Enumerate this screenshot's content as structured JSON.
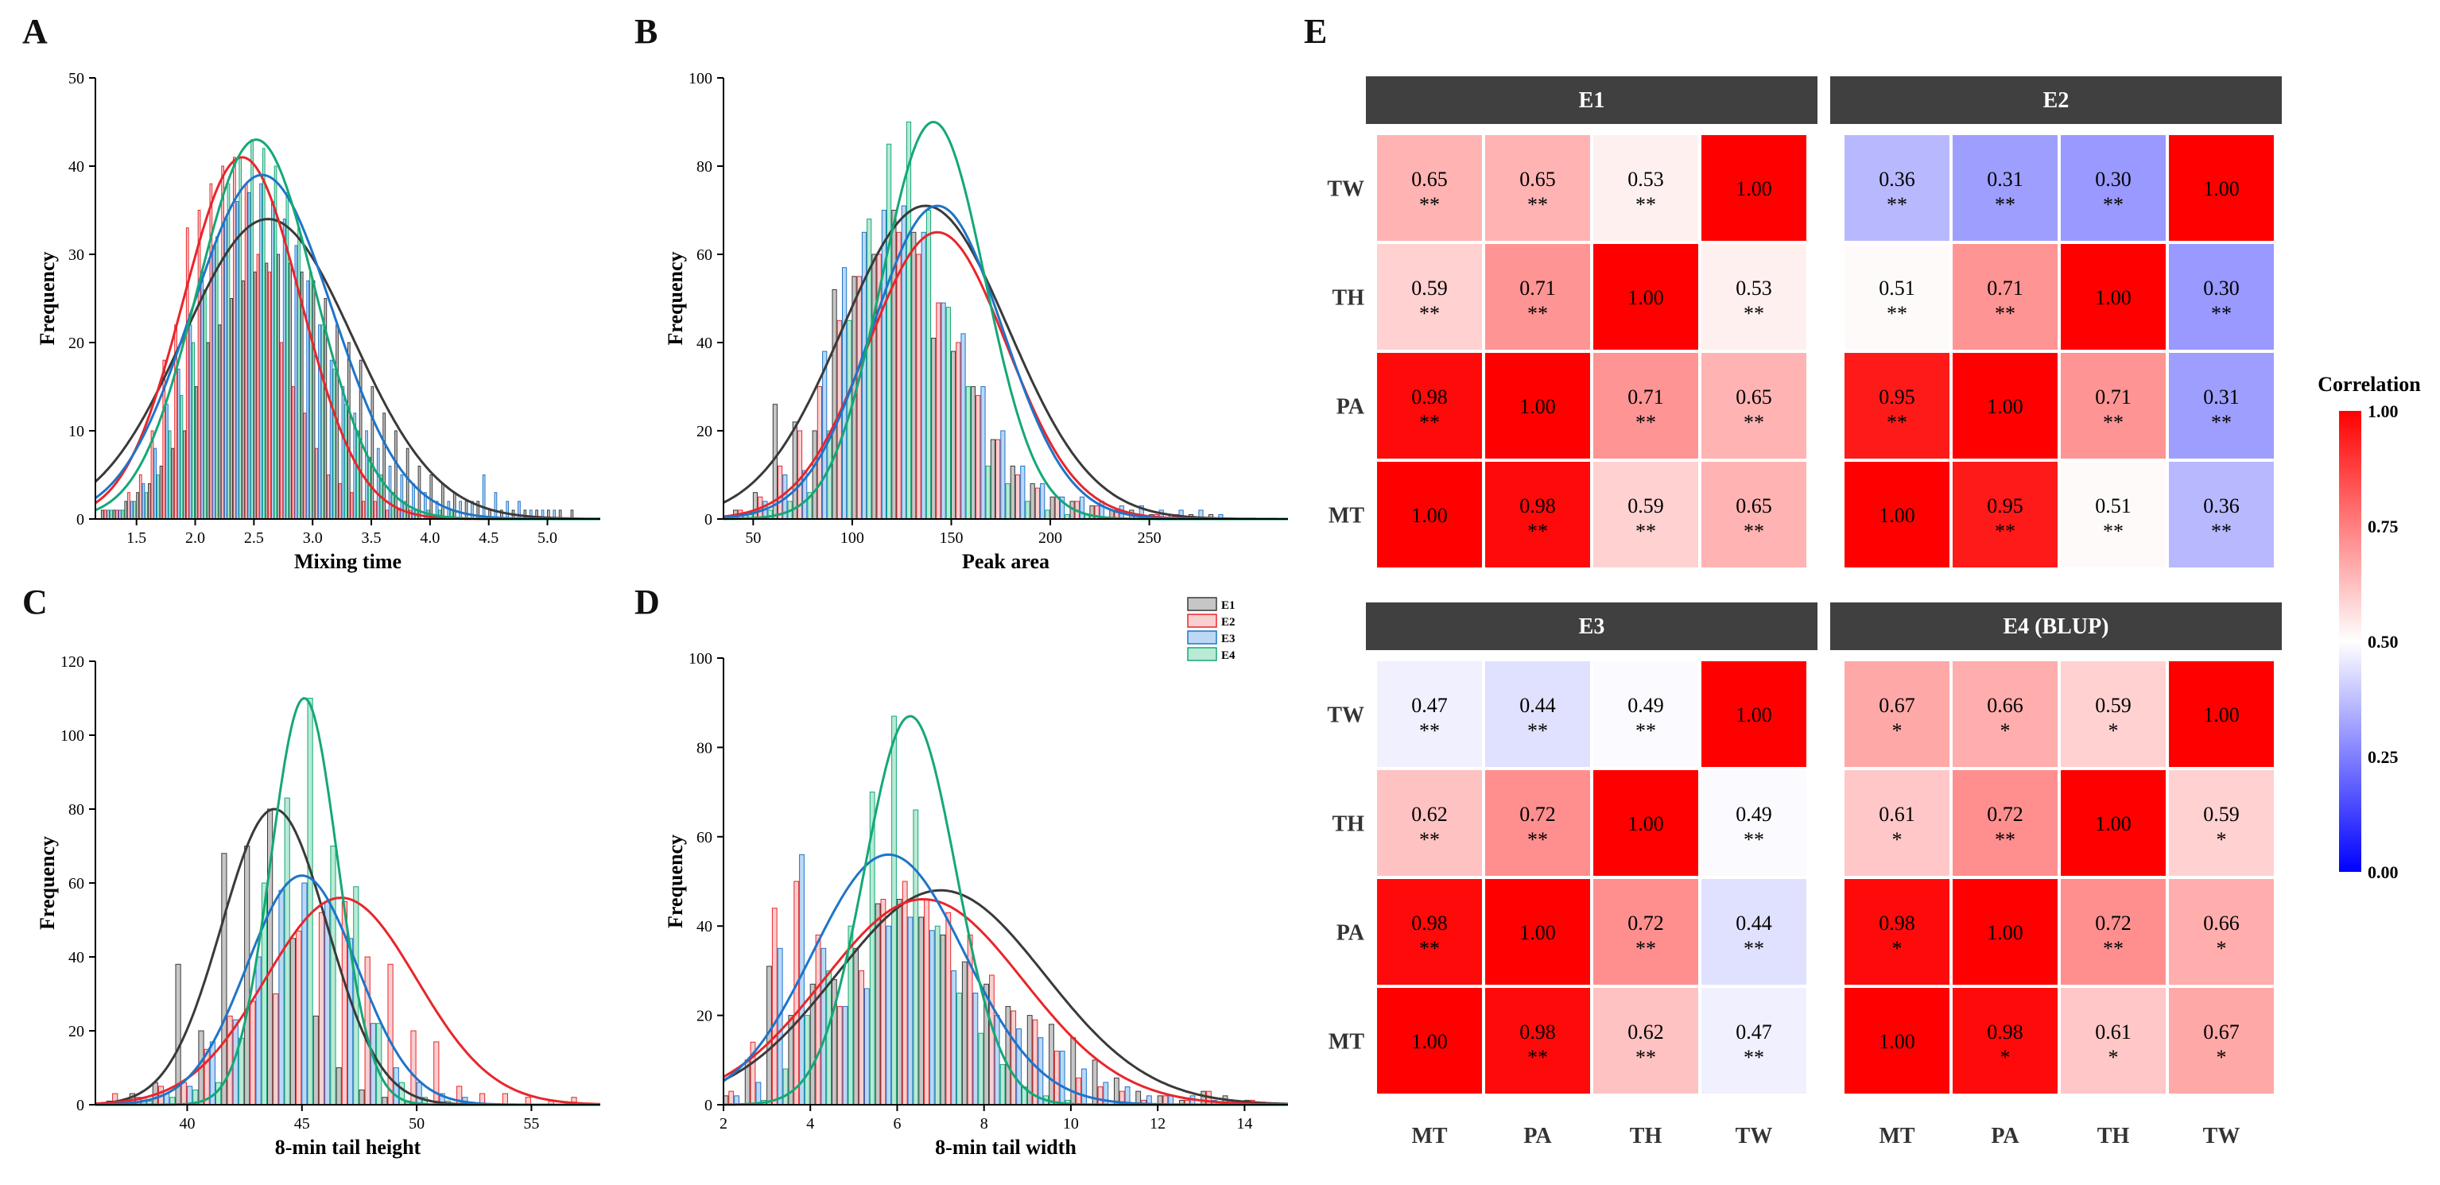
{
  "panel_letters": {
    "a": "A",
    "b": "B",
    "c": "C",
    "d": "D",
    "e": "E"
  },
  "hist_colors": {
    "E1": "#3a3a3a",
    "E2": "#e8262b",
    "E3": "#1f74c9",
    "E4": "#15a876"
  },
  "hist_fills": {
    "E1": "#c6c6c6",
    "E2": "#f9cfcf",
    "E3": "#bcd8f5",
    "E4": "#b9ead5"
  },
  "legend": {
    "entries": [
      "E1",
      "E2",
      "E3",
      "E4"
    ],
    "placement": "above panel D, right"
  },
  "heatmap_colorbar": {
    "title": "Correlation",
    "ticks": [
      "1.00",
      "0.75",
      "0.50",
      "0.25",
      "0.00"
    ]
  },
  "chart_data": [
    {
      "type": "bar",
      "panel": "A",
      "xlabel": "Mixing time",
      "ylabel": "Frequency",
      "xlim": [
        1.15,
        5.45
      ],
      "ylim": [
        0,
        50
      ],
      "xticks": [
        1.5,
        2.0,
        2.5,
        3.0,
        3.5,
        4.0,
        4.5,
        5.0
      ],
      "xtick_labels": [
        "1.5",
        "2.0",
        "2.5",
        "3.0",
        "3.5",
        "4.0",
        "4.5",
        "5.0"
      ],
      "yticks": [
        0,
        10,
        20,
        30,
        40,
        50
      ],
      "bin_start": 1.2,
      "bin_width": 0.1,
      "series": [
        {
          "name": "E1",
          "values": [
            1,
            1,
            2,
            3,
            4,
            6,
            8,
            10,
            15,
            20,
            22,
            25,
            27,
            28,
            29,
            30,
            29,
            28,
            27,
            25,
            22,
            20,
            18,
            15,
            12,
            10,
            8,
            6,
            5,
            4,
            3,
            2,
            2,
            1,
            1,
            1,
            1,
            1,
            1,
            1,
            1
          ]
        },
        {
          "name": "E2",
          "values": [
            1,
            1,
            3,
            5,
            10,
            18,
            22,
            33,
            35,
            38,
            40,
            41,
            38,
            30,
            28,
            20,
            15,
            12,
            8,
            5,
            4,
            3,
            2,
            2,
            1,
            1,
            1,
            0,
            0,
            0,
            0,
            0,
            0,
            0,
            0,
            0,
            0,
            0,
            0,
            0,
            0
          ]
        },
        {
          "name": "E3",
          "values": [
            1,
            1,
            2,
            4,
            8,
            13,
            17,
            22,
            28,
            31,
            34,
            36,
            37,
            38,
            36,
            34,
            31,
            27,
            22,
            18,
            15,
            12,
            10,
            8,
            6,
            5,
            4,
            3,
            2,
            2,
            2,
            2,
            5,
            3,
            2,
            2,
            1,
            1,
            1,
            0,
            0
          ]
        },
        {
          "name": "E4",
          "values": [
            1,
            1,
            2,
            3,
            5,
            10,
            14,
            20,
            26,
            32,
            38,
            41,
            43,
            42,
            40,
            37,
            33,
            28,
            22,
            17,
            13,
            10,
            7,
            5,
            3,
            2,
            1,
            1,
            1,
            1,
            0,
            0,
            0,
            0,
            0,
            0,
            0,
            0,
            0,
            0,
            0
          ]
        }
      ],
      "fits": [
        {
          "name": "E1",
          "mean": 2.62,
          "sd": 0.72,
          "peak": 34
        },
        {
          "name": "E2",
          "mean": 2.4,
          "sd": 0.5,
          "peak": 41
        },
        {
          "name": "E3",
          "mean": 2.57,
          "sd": 0.6,
          "peak": 39
        },
        {
          "name": "E4",
          "mean": 2.52,
          "sd": 0.5,
          "peak": 43
        }
      ]
    },
    {
      "type": "bar",
      "panel": "B",
      "xlabel": "Peak area",
      "ylabel": "Frequency",
      "xlim": [
        35,
        320
      ],
      "ylim": [
        0,
        100
      ],
      "xticks": [
        50,
        100,
        150,
        200,
        250
      ],
      "xtick_labels": [
        "50",
        "100",
        "150",
        "200",
        "250"
      ],
      "yticks": [
        0,
        20,
        40,
        60,
        80,
        100
      ],
      "bin_start": 40,
      "bin_width": 10,
      "series": [
        {
          "name": "E1",
          "values": [
            2,
            6,
            26,
            22,
            20,
            52,
            55,
            60,
            70,
            65,
            41,
            38,
            30,
            18,
            12,
            8,
            5,
            4,
            3,
            2,
            2,
            1,
            1,
            1,
            1
          ]
        },
        {
          "name": "E2",
          "values": [
            2,
            5,
            12,
            20,
            30,
            45,
            55,
            60,
            65,
            60,
            49,
            40,
            28,
            18,
            10,
            7,
            5,
            4,
            3,
            2,
            1,
            1,
            1,
            0,
            0
          ]
        },
        {
          "name": "E3",
          "values": [
            1,
            4,
            10,
            11,
            38,
            57,
            65,
            70,
            71,
            65,
            49,
            42,
            30,
            20,
            12,
            8,
            5,
            5,
            4,
            3,
            3,
            2,
            2,
            2,
            1
          ]
        },
        {
          "name": "E4",
          "values": [
            1,
            2,
            4,
            6,
            20,
            45,
            68,
            85,
            90,
            70,
            48,
            30,
            12,
            8,
            4,
            2,
            1,
            1,
            0,
            0,
            0,
            0,
            0,
            0,
            0
          ]
        }
      ],
      "fits": [
        {
          "name": "E1",
          "mean": 137,
          "sd": 42,
          "peak": 71
        },
        {
          "name": "E2",
          "mean": 143,
          "sd": 35,
          "peak": 65
        },
        {
          "name": "E3",
          "mean": 143,
          "sd": 33,
          "peak": 71
        },
        {
          "name": "E4",
          "mean": 141,
          "sd": 26,
          "peak": 90
        }
      ]
    },
    {
      "type": "bar",
      "panel": "C",
      "xlabel": "8-min tail height",
      "ylabel": "Frequency",
      "xlim": [
        36,
        58
      ],
      "ylim": [
        0,
        120
      ],
      "xticks": [
        40,
        45,
        50,
        55
      ],
      "xtick_labels": [
        "40",
        "45",
        "50",
        "55"
      ],
      "yticks": [
        0,
        20,
        40,
        60,
        80,
        100,
        120
      ],
      "bin_start": 36.5,
      "bin_width": 1,
      "series": [
        {
          "name": "E1",
          "values": [
            1,
            3,
            6,
            38,
            20,
            68,
            70,
            80,
            45,
            24,
            10,
            4,
            2,
            1,
            0,
            0,
            0,
            0,
            0,
            0,
            0
          ]
        },
        {
          "name": "E2",
          "values": [
            3,
            2,
            5,
            6,
            15,
            24,
            28,
            30,
            47,
            52,
            55,
            40,
            38,
            20,
            17,
            5,
            3,
            3,
            2,
            1,
            2
          ]
        },
        {
          "name": "E3",
          "values": [
            1,
            2,
            3,
            5,
            17,
            23,
            40,
            58,
            60,
            55,
            45,
            22,
            10,
            6,
            3,
            2,
            0,
            0,
            0,
            0,
            0
          ]
        },
        {
          "name": "E4",
          "values": [
            0,
            1,
            2,
            4,
            6,
            18,
            60,
            83,
            110,
            70,
            59,
            22,
            6,
            2,
            1,
            0,
            0,
            0,
            0,
            0,
            0
          ]
        }
      ],
      "fits": [
        {
          "name": "E1",
          "mean": 43.8,
          "sd": 2.3,
          "peak": 80
        },
        {
          "name": "E2",
          "mean": 46.7,
          "sd": 3.3,
          "peak": 56
        },
        {
          "name": "E3",
          "mean": 45.0,
          "sd": 2.4,
          "peak": 62
        },
        {
          "name": "E4",
          "mean": 45.1,
          "sd": 1.45,
          "peak": 110
        }
      ]
    },
    {
      "type": "bar",
      "panel": "D",
      "xlabel": "8-min tail width",
      "ylabel": "Frequency",
      "xlim": [
        2,
        15
      ],
      "ylim": [
        0,
        100
      ],
      "xticks": [
        2,
        4,
        6,
        8,
        10,
        12,
        14
      ],
      "xtick_labels": [
        "2",
        "4",
        "6",
        "8",
        "10",
        "12",
        "14"
      ],
      "yticks": [
        0,
        20,
        40,
        60,
        80,
        100
      ],
      "bin_start": 2,
      "bin_width": 0.5,
      "series": [
        {
          "name": "E1",
          "values": [
            2,
            10,
            31,
            20,
            27,
            28,
            35,
            45,
            46,
            42,
            38,
            32,
            27,
            22,
            20,
            18,
            15,
            10,
            6,
            3,
            2,
            1,
            3,
            2,
            1
          ]
        },
        {
          "name": "E2",
          "values": [
            3,
            14,
            44,
            50,
            38,
            22,
            30,
            46,
            50,
            46,
            43,
            38,
            29,
            21,
            19,
            12,
            6,
            4,
            3,
            1,
            2,
            1,
            3,
            1,
            1
          ]
        },
        {
          "name": "E3",
          "values": [
            2,
            5,
            35,
            56,
            35,
            22,
            26,
            40,
            42,
            39,
            30,
            25,
            20,
            17,
            15,
            12,
            8,
            5,
            4,
            2,
            2,
            2,
            1,
            1,
            0
          ]
        },
        {
          "name": "E4",
          "values": [
            0,
            1,
            8,
            20,
            30,
            40,
            70,
            87,
            66,
            40,
            25,
            16,
            9,
            4,
            2,
            1,
            0,
            0,
            0,
            0,
            0,
            0,
            0,
            0,
            0
          ]
        }
      ],
      "fits": [
        {
          "name": "E1",
          "mean": 7.0,
          "sd": 2.4,
          "peak": 48
        },
        {
          "name": "E2",
          "mean": 6.6,
          "sd": 2.3,
          "peak": 46
        },
        {
          "name": "E3",
          "mean": 5.8,
          "sd": 1.75,
          "peak": 56
        },
        {
          "name": "E4",
          "mean": 6.3,
          "sd": 1.05,
          "peak": 87
        }
      ]
    },
    {
      "type": "heatmap",
      "panel": "E",
      "rows": [
        "TW",
        "TH",
        "PA",
        "MT"
      ],
      "cols": [
        "MT",
        "PA",
        "TH",
        "TW"
      ],
      "color_range": [
        0,
        1
      ],
      "panels": [
        {
          "title": "E1",
          "values": [
            [
              0.65,
              0.65,
              0.53,
              1.0
            ],
            [
              0.59,
              0.71,
              1.0,
              0.53
            ],
            [
              0.98,
              1.0,
              0.71,
              0.65
            ],
            [
              1.0,
              0.98,
              0.59,
              0.65
            ]
          ],
          "stars": [
            [
              "**",
              "**",
              "**",
              ""
            ],
            [
              "**",
              "**",
              "",
              "**"
            ],
            [
              "**",
              "",
              "**",
              "**"
            ],
            [
              "",
              "**",
              "**",
              "**"
            ]
          ]
        },
        {
          "title": "E2",
          "values": [
            [
              0.36,
              0.31,
              0.3,
              1.0
            ],
            [
              0.51,
              0.71,
              1.0,
              0.3
            ],
            [
              0.95,
              1.0,
              0.71,
              0.31
            ],
            [
              1.0,
              0.95,
              0.51,
              0.36
            ]
          ],
          "stars": [
            [
              "**",
              "**",
              "**",
              ""
            ],
            [
              "**",
              "**",
              "",
              "**"
            ],
            [
              "**",
              "",
              "**",
              "**"
            ],
            [
              "",
              "**",
              "**",
              "**"
            ]
          ]
        },
        {
          "title": "E3",
          "values": [
            [
              0.47,
              0.44,
              0.49,
              1.0
            ],
            [
              0.62,
              0.72,
              1.0,
              0.49
            ],
            [
              0.98,
              1.0,
              0.72,
              0.44
            ],
            [
              1.0,
              0.98,
              0.62,
              0.47
            ]
          ],
          "stars": [
            [
              "**",
              "**",
              "**",
              ""
            ],
            [
              "**",
              "**",
              "",
              "**"
            ],
            [
              "**",
              "",
              "**",
              "**"
            ],
            [
              "",
              "**",
              "**",
              "**"
            ]
          ]
        },
        {
          "title": "E4 (BLUP)",
          "values": [
            [
              0.67,
              0.66,
              0.59,
              1.0
            ],
            [
              0.61,
              0.72,
              1.0,
              0.59
            ],
            [
              0.98,
              1.0,
              0.72,
              0.66
            ],
            [
              1.0,
              0.98,
              0.61,
              0.67
            ]
          ],
          "stars": [
            [
              "*",
              "*",
              "*",
              ""
            ],
            [
              "*",
              "**",
              "",
              "*"
            ],
            [
              "*",
              "",
              "**",
              "*"
            ],
            [
              "",
              "*",
              "*",
              "*"
            ]
          ]
        }
      ]
    }
  ]
}
